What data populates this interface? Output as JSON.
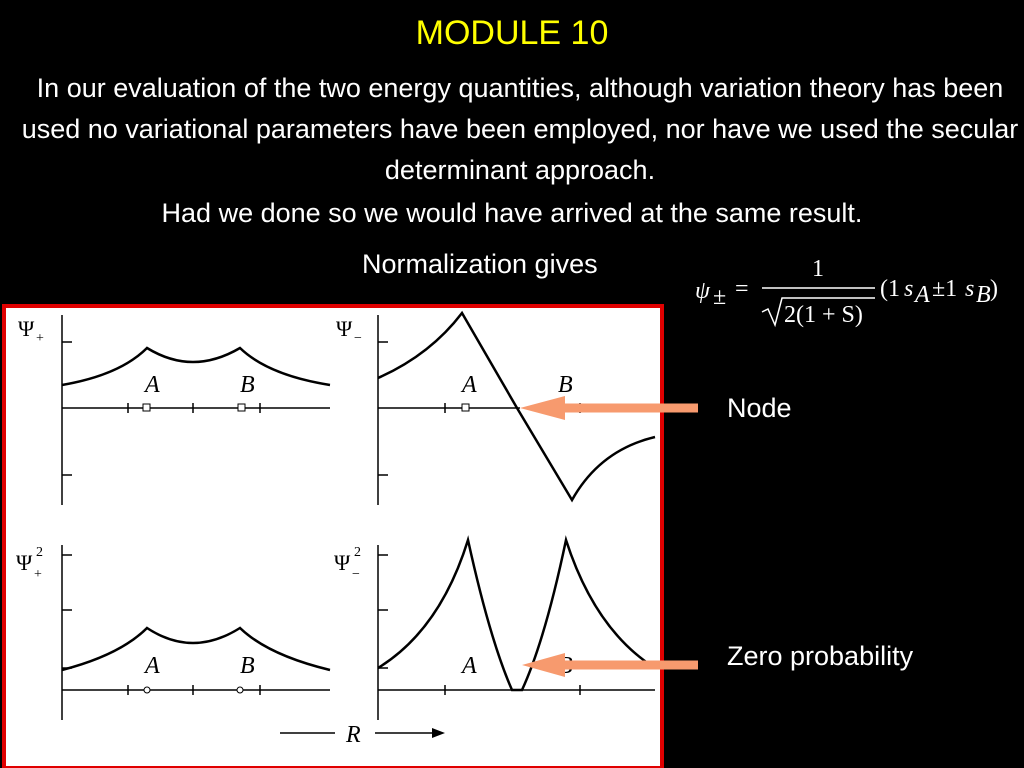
{
  "header": {
    "title": "MODULE 10"
  },
  "body": {
    "paragraph": "In our evaluation of the two energy quantities, although variation theory has been used no variational parameters have been employed, nor have we used the secular determinant approach.",
    "sentence": "Had we done so we would have arrived at the same result.",
    "normalization": "Normalization gives"
  },
  "equation": {
    "psi": "ψ",
    "psi_sub": "±",
    "equals": "=",
    "numerator": "1",
    "denominator": "2(1 + S)",
    "open": "(1",
    "s_a": "s",
    "sub_a": "A",
    "pm": "±1",
    "s_b": "s",
    "sub_b": "B",
    "close": ")"
  },
  "figure": {
    "panels": [
      {
        "symbol": "Ψ",
        "sub": "+"
      },
      {
        "symbol": "Ψ",
        "sub": "−"
      },
      {
        "symbol": "Ψ",
        "sub": "+",
        "sup": "2"
      },
      {
        "symbol": "Ψ",
        "sub": "−",
        "sup": "2"
      }
    ],
    "nucleus_a": "A",
    "nucleus_b": "B",
    "axis_label": "R"
  },
  "annotations": {
    "node": "Node",
    "zero": "Zero probability"
  }
}
